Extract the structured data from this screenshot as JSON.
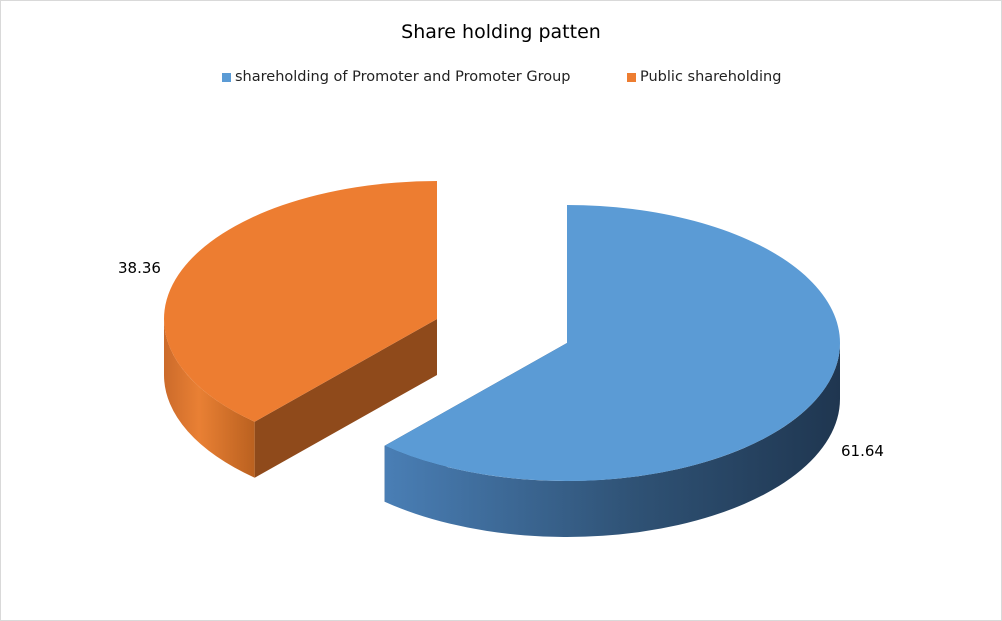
{
  "chart_data": {
    "type": "pie",
    "style": "3d-exploded",
    "title": "Share holding patten",
    "legend_position": "top",
    "series": [
      {
        "name": "shareholding of Promoter and Promoter Group",
        "value": 61.64,
        "label": "61.64",
        "color": "#5b9bd5"
      },
      {
        "name": "Public shareholding",
        "value": 38.36,
        "label": "38.36",
        "color": "#ed7d31"
      }
    ]
  }
}
